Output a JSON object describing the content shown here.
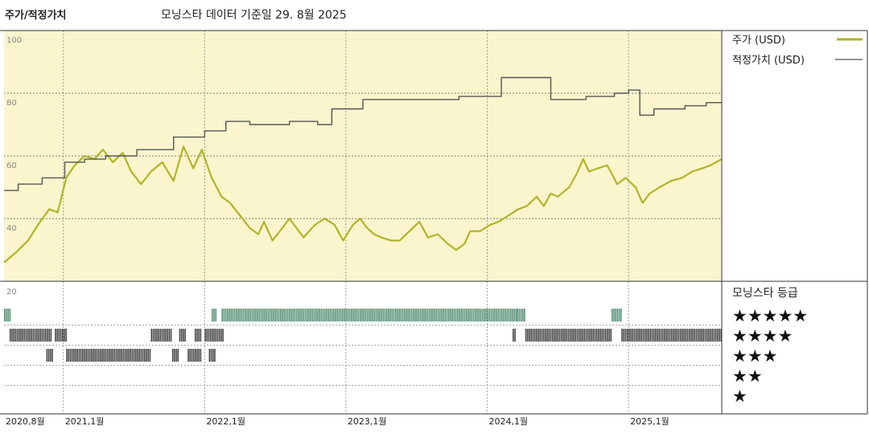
{
  "header": {
    "title": "주가/적정가치",
    "subtitle": "모닝스타 데이터 기준일 29. 8월 2025"
  },
  "legend": {
    "price_label": "주가 (USD)",
    "fair_label": "적정가치 (USD)",
    "rating_title": "모닝스타 등급",
    "stars": [
      "★★★★★",
      "★★★★",
      "★★★",
      "★★",
      "★"
    ]
  },
  "colors": {
    "price": "#b0b428",
    "fair_value": "#555555",
    "upper_bg": "#faf5cc",
    "rating_5": "#4d8c6e",
    "rating_other": "#3a3a3a"
  },
  "chart_data": {
    "type": "line",
    "x_ticks": [
      "2020,8월",
      "2021,1월",
      "2022,1월",
      "2023,1월",
      "2024,1월",
      "2025,1월"
    ],
    "x_tick_dates": [
      2020.58,
      2021.0,
      2022.0,
      2023.0,
      2024.0,
      2025.0
    ],
    "x_range": [
      2020.58,
      2025.66
    ],
    "y_ticks": [
      20,
      40,
      60,
      80,
      100
    ],
    "ylim": [
      20,
      100
    ],
    "grid": true,
    "legend_position": "right",
    "series": [
      {
        "name": "주가 (USD)",
        "color": "#b0b428",
        "step": false,
        "points": [
          [
            2020.58,
            26
          ],
          [
            2020.66,
            29
          ],
          [
            2020.75,
            33
          ],
          [
            2020.82,
            38
          ],
          [
            2020.9,
            43
          ],
          [
            2020.96,
            42
          ],
          [
            2021.02,
            53
          ],
          [
            2021.08,
            57
          ],
          [
            2021.15,
            60
          ],
          [
            2021.22,
            59
          ],
          [
            2021.28,
            62
          ],
          [
            2021.35,
            58
          ],
          [
            2021.42,
            61
          ],
          [
            2021.48,
            55
          ],
          [
            2021.55,
            51
          ],
          [
            2021.62,
            55
          ],
          [
            2021.7,
            58
          ],
          [
            2021.78,
            52
          ],
          [
            2021.85,
            63
          ],
          [
            2021.92,
            56
          ],
          [
            2021.98,
            62
          ],
          [
            2022.05,
            53
          ],
          [
            2022.12,
            47
          ],
          [
            2022.18,
            45
          ],
          [
            2022.25,
            41
          ],
          [
            2022.32,
            37
          ],
          [
            2022.38,
            35
          ],
          [
            2022.42,
            39
          ],
          [
            2022.48,
            33
          ],
          [
            2022.55,
            37
          ],
          [
            2022.6,
            40
          ],
          [
            2022.65,
            37
          ],
          [
            2022.7,
            34
          ],
          [
            2022.78,
            38
          ],
          [
            2022.85,
            40
          ],
          [
            2022.92,
            38
          ],
          [
            2022.98,
            33
          ],
          [
            2023.05,
            38
          ],
          [
            2023.1,
            40
          ],
          [
            2023.15,
            37
          ],
          [
            2023.2,
            35
          ],
          [
            2023.25,
            34
          ],
          [
            2023.32,
            33
          ],
          [
            2023.38,
            33
          ],
          [
            2023.45,
            36
          ],
          [
            2023.52,
            39
          ],
          [
            2023.58,
            34
          ],
          [
            2023.65,
            35
          ],
          [
            2023.72,
            32
          ],
          [
            2023.78,
            30
          ],
          [
            2023.84,
            32
          ],
          [
            2023.88,
            36
          ],
          [
            2023.95,
            36
          ],
          [
            2024.02,
            38
          ],
          [
            2024.08,
            39
          ],
          [
            2024.15,
            41
          ],
          [
            2024.22,
            43
          ],
          [
            2024.28,
            44
          ],
          [
            2024.35,
            47
          ],
          [
            2024.4,
            44
          ],
          [
            2024.45,
            48
          ],
          [
            2024.5,
            47
          ],
          [
            2024.58,
            50
          ],
          [
            2024.63,
            54
          ],
          [
            2024.68,
            59
          ],
          [
            2024.72,
            55
          ],
          [
            2024.78,
            56
          ],
          [
            2024.85,
            57
          ],
          [
            2024.92,
            51
          ],
          [
            2024.98,
            53
          ],
          [
            2025.05,
            50
          ],
          [
            2025.1,
            45
          ],
          [
            2025.15,
            48
          ],
          [
            2025.22,
            50
          ],
          [
            2025.3,
            52
          ],
          [
            2025.38,
            53
          ],
          [
            2025.45,
            55
          ],
          [
            2025.52,
            56
          ],
          [
            2025.58,
            57
          ],
          [
            2025.66,
            59
          ]
        ]
      },
      {
        "name": "적정가치 (USD)",
        "color": "#555555",
        "step": true,
        "points": [
          [
            2020.58,
            49
          ],
          [
            2020.68,
            51
          ],
          [
            2020.85,
            53
          ],
          [
            2021.01,
            58
          ],
          [
            2021.15,
            59
          ],
          [
            2021.3,
            60
          ],
          [
            2021.52,
            62
          ],
          [
            2021.78,
            66
          ],
          [
            2022.0,
            68
          ],
          [
            2022.15,
            71
          ],
          [
            2022.32,
            70
          ],
          [
            2022.6,
            71
          ],
          [
            2022.8,
            70
          ],
          [
            2022.9,
            75
          ],
          [
            2023.12,
            78
          ],
          [
            2023.5,
            78
          ],
          [
            2023.8,
            79
          ],
          [
            2024.1,
            85
          ],
          [
            2024.45,
            78
          ],
          [
            2024.7,
            79
          ],
          [
            2024.9,
            80
          ],
          [
            2025.0,
            81
          ],
          [
            2025.08,
            73
          ],
          [
            2025.18,
            75
          ],
          [
            2025.4,
            76
          ],
          [
            2025.55,
            77
          ]
        ]
      }
    ],
    "star_rating": {
      "levels": [
        5,
        4,
        3,
        2,
        1
      ],
      "periods": [
        {
          "stars": 5,
          "from": 2020.58,
          "to": 2020.62
        },
        {
          "stars": 4,
          "from": 2020.62,
          "to": 2020.92
        },
        {
          "stars": 4,
          "from": 2020.94,
          "to": 2021.02
        },
        {
          "stars": 3,
          "from": 2020.88,
          "to": 2020.92
        },
        {
          "stars": 3,
          "from": 2021.02,
          "to": 2021.62
        },
        {
          "stars": 4,
          "from": 2021.62,
          "to": 2021.76
        },
        {
          "stars": 4,
          "from": 2021.82,
          "to": 2021.86
        },
        {
          "stars": 3,
          "from": 2021.77,
          "to": 2021.82
        },
        {
          "stars": 3,
          "from": 2021.88,
          "to": 2021.98
        },
        {
          "stars": 4,
          "from": 2021.93,
          "to": 2021.97
        },
        {
          "stars": 4,
          "from": 2022.0,
          "to": 2022.13
        },
        {
          "stars": 3,
          "from": 2022.03,
          "to": 2022.08
        },
        {
          "stars": 5,
          "from": 2022.05,
          "to": 2022.08
        },
        {
          "stars": 5,
          "from": 2022.12,
          "to": 2024.2
        },
        {
          "stars": 4,
          "from": 2024.18,
          "to": 2024.2
        },
        {
          "stars": 5,
          "from": 2024.21,
          "to": 2024.27
        },
        {
          "stars": 4,
          "from": 2024.27,
          "to": 2024.88
        },
        {
          "stars": 5,
          "from": 2024.88,
          "to": 2024.95
        },
        {
          "stars": 4,
          "from": 2024.95,
          "to": 2025.66
        }
      ]
    }
  }
}
